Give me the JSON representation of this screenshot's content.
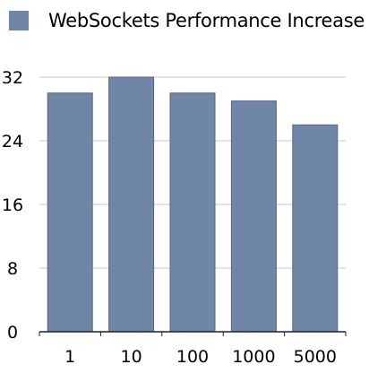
{
  "chart_data": {
    "type": "bar",
    "title": "",
    "xlabel": "",
    "ylabel": "",
    "categories": [
      "1",
      "10",
      "100",
      "1000",
      "5000"
    ],
    "series": [
      {
        "name": "WebSockets Performance Increase",
        "values": [
          30,
          32,
          30,
          29,
          26
        ]
      }
    ],
    "ylim": [
      0,
      32
    ],
    "yticks": [
      "0",
      "8",
      "16",
      "24",
      "32"
    ],
    "grid": true,
    "legend": "top-left",
    "colors": {
      "bar": "#6f86a6",
      "bar_edge": "#53678a",
      "grid": "#c8c8c8",
      "axis": "#222222"
    }
  }
}
